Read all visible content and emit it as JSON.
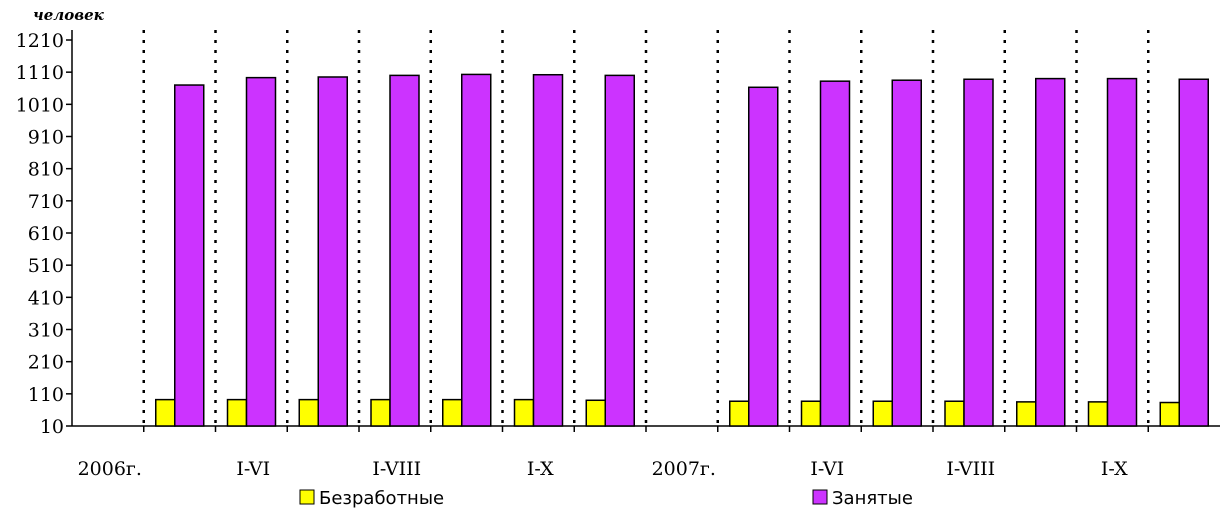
{
  "chart_data": {
    "type": "bar",
    "unit_label": "человек",
    "y_ticks": [
      10,
      110,
      210,
      310,
      410,
      510,
      610,
      710,
      810,
      910,
      1010,
      1110,
      1210
    ],
    "ylim": [
      10,
      1210
    ],
    "grid": "vertical-dotted",
    "categories": [
      "2006г.",
      "",
      "I-VI",
      "",
      "I-VIII",
      "",
      "I-X",
      "",
      "2007г.",
      "",
      "I-VI",
      "",
      "I-VIII",
      "",
      "I-X",
      ""
    ],
    "series": [
      {
        "name": "Безработные",
        "color": "#ffff00",
        "values": [
          null,
          92,
          92,
          92,
          92,
          92,
          92,
          90,
          null,
          87,
          87,
          87,
          87,
          85,
          85,
          83
        ]
      },
      {
        "name": "Занятые",
        "color": "#cc33ff",
        "values": [
          null,
          1070,
          1093,
          1095,
          1100,
          1103,
          1102,
          1100,
          null,
          1063,
          1082,
          1085,
          1088,
          1090,
          1090,
          1088
        ]
      }
    ],
    "legend_position": "bottom"
  }
}
